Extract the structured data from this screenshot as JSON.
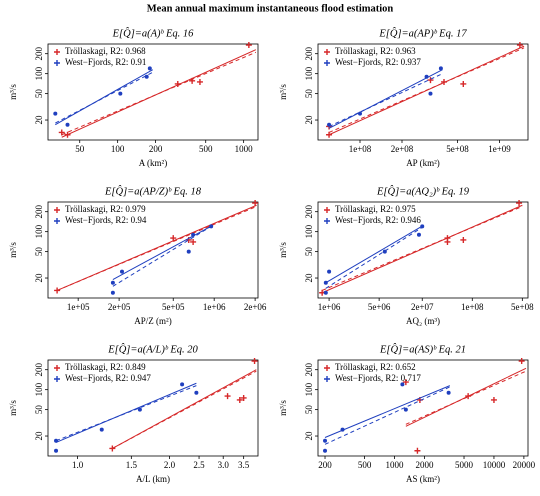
{
  "title": "Mean annual maximum instantaneous flood estimation",
  "chart_data": [
    {
      "type": "scatter",
      "title": "E[Q̂]=a(A)ᵇ  Eq. 16",
      "xlabel": "A (km²)",
      "ylabel": "m³/s",
      "xlog": true,
      "ylog": true,
      "xlim": [
        28,
        1300
      ],
      "ylim": [
        10,
        280
      ],
      "xticks": [
        50,
        100,
        200,
        500,
        1000
      ],
      "yticks": [
        20,
        50,
        100,
        200
      ],
      "series": [
        {
          "name": "Tröllaskagi, R2: 0.968",
          "color": "#d62728",
          "marker": "plus",
          "x": [
            36,
            40,
            300,
            390,
            450,
            1100
          ],
          "y": [
            13,
            12,
            70,
            78,
            75,
            270
          ],
          "fit_x": [
            36,
            1250
          ],
          "fit_y": [
            11,
            230
          ],
          "fit2_x": [
            36,
            1250
          ],
          "fit2_y": [
            12,
            210
          ]
        },
        {
          "name": "West−Fjords, R2: 0.91",
          "color": "#1f3fbf",
          "marker": "dot",
          "x": [
            32,
            40,
            105,
            170,
            180
          ],
          "y": [
            25,
            17,
            50,
            90,
            120
          ],
          "fit_x": [
            32,
            190
          ],
          "fit_y": [
            17,
            115
          ],
          "fit2_x": [
            32,
            190
          ],
          "fit2_y": [
            18,
            105
          ]
        }
      ]
    },
    {
      "type": "scatter",
      "title": "E[Q̂]=a(AP)ᵇ  Eq. 17",
      "xlabel": "AP (km²)",
      "ylabel": "m³/s",
      "xlog": true,
      "ylog": true,
      "xlim": [
        50000000,
        1600000000
      ],
      "ylim": [
        10,
        280
      ],
      "xticks": [
        {
          "value": 100000000,
          "label": "1e+08"
        },
        {
          "value": 200000000,
          "label": "2e+08"
        },
        {
          "value": 500000000,
          "label": "5e+08"
        },
        {
          "value": 1000000000,
          "label": "1e+09"
        }
      ],
      "yticks": [
        20,
        50,
        100,
        200
      ],
      "series": [
        {
          "name": "Tröllaskagi, R2: 0.963",
          "color": "#d62728",
          "marker": "plus",
          "x": [
            60000000,
            60000000,
            320000000,
            400000000,
            550000000,
            1400000000
          ],
          "y": [
            12,
            16,
            80,
            75,
            70,
            270
          ],
          "fit_x": [
            60000000,
            1500000000
          ],
          "fit_y": [
            12,
            260
          ],
          "fit2_x": [
            60000000,
            1500000000
          ],
          "fit2_y": [
            13,
            245
          ]
        },
        {
          "name": "West−Fjords, R2: 0.937",
          "color": "#1f3fbf",
          "marker": "dot",
          "x": [
            60000000,
            100000000,
            300000000,
            320000000,
            380000000
          ],
          "y": [
            17,
            25,
            90,
            50,
            120
          ],
          "fit_x": [
            60000000,
            390000000
          ],
          "fit_y": [
            15,
            115
          ],
          "fit2_x": [
            60000000,
            390000000
          ],
          "fit2_y": [
            16,
            100
          ]
        }
      ]
    },
    {
      "type": "scatter",
      "title": "E[Q̂]=a(AP/Z)ᵇ  Eq. 18",
      "xlabel": "AP/Z (m²)",
      "ylabel": "m³/s",
      "xlog": true,
      "ylog": true,
      "xlim": [
        60000,
        2100000
      ],
      "ylim": [
        10,
        280
      ],
      "xticks": [
        {
          "value": 100000,
          "label": "1e+05"
        },
        {
          "value": 200000,
          "label": "2e+05"
        },
        {
          "value": 500000,
          "label": "5e+05"
        },
        {
          "value": 1000000,
          "label": "1e+06"
        },
        {
          "value": 2000000,
          "label": "2e+06"
        }
      ],
      "yticks": [
        20,
        50,
        100,
        200
      ],
      "series": [
        {
          "name": "Tröllaskagi, R2: 0.979",
          "color": "#d62728",
          "marker": "plus",
          "x": [
            70000,
            500000,
            650000,
            700000,
            2000000
          ],
          "y": [
            13,
            80,
            75,
            70,
            270
          ],
          "fit_x": [
            70000,
            2050000
          ],
          "fit_y": [
            13,
            250
          ],
          "fit2_x": [
            70000,
            2050000
          ],
          "fit2_y": [
            13,
            240
          ]
        },
        {
          "name": "West−Fjords, R2: 0.94",
          "color": "#1f3fbf",
          "marker": "dot",
          "x": [
            180000,
            180000,
            210000,
            650000,
            700000,
            950000
          ],
          "y": [
            17,
            12,
            25,
            50,
            90,
            120
          ],
          "fit_x": [
            180000,
            980000
          ],
          "fit_y": [
            19,
            125
          ],
          "fit2_x": [
            180000,
            980000
          ],
          "fit2_y": [
            15,
            125
          ]
        }
      ]
    },
    {
      "type": "scatter",
      "title": "E[Q̂]=a(AQ₂)ᵇ  Eq. 19",
      "xlabel": "AQ₂ (m³)",
      "ylabel": "m³/s",
      "xlog": true,
      "ylog": true,
      "xlim": [
        700000,
        600000000
      ],
      "ylim": [
        10,
        280
      ],
      "xticks": [
        {
          "value": 1000000,
          "label": "1e+06"
        },
        {
          "value": 5000000,
          "label": "5e+06"
        },
        {
          "value": 20000000,
          "label": "2e+07"
        },
        {
          "value": 100000000,
          "label": "1e+08"
        },
        {
          "value": 500000000,
          "label": "5e+08"
        }
      ],
      "yticks": [
        20,
        50,
        100,
        200
      ],
      "series": [
        {
          "name": "Tröllaskagi, R2: 0.975",
          "color": "#d62728",
          "marker": "plus",
          "x": [
            800000,
            45000000,
            45000000,
            75000000,
            450000000
          ],
          "y": [
            12,
            70,
            80,
            75,
            270
          ],
          "fit_x": [
            800000,
            500000000
          ],
          "fit_y": [
            12,
            250
          ],
          "fit2_x": [
            800000,
            500000000
          ],
          "fit2_y": [
            13,
            240
          ]
        },
        {
          "name": "West−Fjords, R2: 0.946",
          "color": "#1f3fbf",
          "marker": "dot",
          "x": [
            900000,
            900000,
            1000000,
            6000000,
            18000000,
            20000000
          ],
          "y": [
            17,
            12,
            25,
            50,
            90,
            120
          ],
          "fit_x": [
            900000,
            21000000
          ],
          "fit_y": [
            17,
            125
          ],
          "fit2_x": [
            900000,
            21000000
          ],
          "fit2_y": [
            14,
            120
          ]
        }
      ]
    },
    {
      "type": "scatter",
      "title": "E[Q̂]=a(A/L)ᵇ  Eq. 20",
      "xlabel": "A/L (km)",
      "ylabel": "m³/s",
      "xlog": true,
      "ylog": true,
      "xlim": [
        0.8,
        3.9
      ],
      "ylim": [
        10,
        280
      ],
      "xticks": [
        {
          "value": 1,
          "label": "1.0"
        },
        1.5,
        {
          "value": 2,
          "label": "2.0"
        },
        2.5,
        {
          "value": 3,
          "label": "3.0"
        },
        3.5
      ],
      "yticks": [
        20,
        50,
        100,
        200
      ],
      "series": [
        {
          "name": "Tröllaskagi, R2: 0.849",
          "color": "#d62728",
          "marker": "plus",
          "x": [
            1.3,
            3.1,
            3.4,
            3.5,
            3.8
          ],
          "y": [
            13,
            80,
            70,
            75,
            270
          ],
          "fit_x": [
            1.3,
            3.85
          ],
          "fit_y": [
            13,
            200
          ],
          "fit2_x": [
            1.3,
            3.85
          ],
          "fit2_y": [
            13,
            190
          ]
        },
        {
          "name": "West−Fjords, R2: 0.947",
          "color": "#1f3fbf",
          "marker": "dot",
          "x": [
            0.85,
            0.85,
            1.2,
            1.6,
            2.2,
            2.45
          ],
          "y": [
            17,
            12,
            25,
            50,
            120,
            90
          ],
          "fit_x": [
            0.85,
            2.45
          ],
          "fit_y": [
            16,
            125
          ],
          "fit2_x": [
            0.85,
            2.45
          ],
          "fit2_y": [
            17,
            115
          ]
        }
      ]
    },
    {
      "type": "scatter",
      "title": "E[Q̂]=a(AS)ᵇ  Eq. 21",
      "xlabel": "AS (km²)",
      "ylabel": "m³/s",
      "xlog": true,
      "ylog": true,
      "xlim": [
        170,
        22000
      ],
      "ylim": [
        10,
        280
      ],
      "xticks": [
        200,
        500,
        1000,
        2000,
        5000,
        10000,
        20000
      ],
      "yticks": [
        20,
        50,
        100,
        200
      ],
      "series": [
        {
          "name": "Tröllaskagi, R2: 0.652",
          "color": "#d62728",
          "marker": "plus",
          "x": [
            1300,
            1700,
            1800,
            5500,
            10000,
            19000
          ],
          "y": [
            130,
            12,
            70,
            80,
            70,
            270
          ],
          "fit_x": [
            1300,
            21000
          ],
          "fit_y": [
            28,
            210
          ],
          "fit2_x": [
            1300,
            21000
          ],
          "fit2_y": [
            30,
            190
          ]
        },
        {
          "name": "West−Fjords, R2: 0.717",
          "color": "#1f3fbf",
          "marker": "dot",
          "x": [
            200,
            200,
            300,
            1200,
            1300,
            3500
          ],
          "y": [
            17,
            12,
            25,
            120,
            50,
            90
          ],
          "fit_x": [
            200,
            3600
          ],
          "fit_y": [
            19,
            115
          ],
          "fit2_x": [
            200,
            3600
          ],
          "fit2_y": [
            15,
            110
          ]
        }
      ]
    }
  ]
}
